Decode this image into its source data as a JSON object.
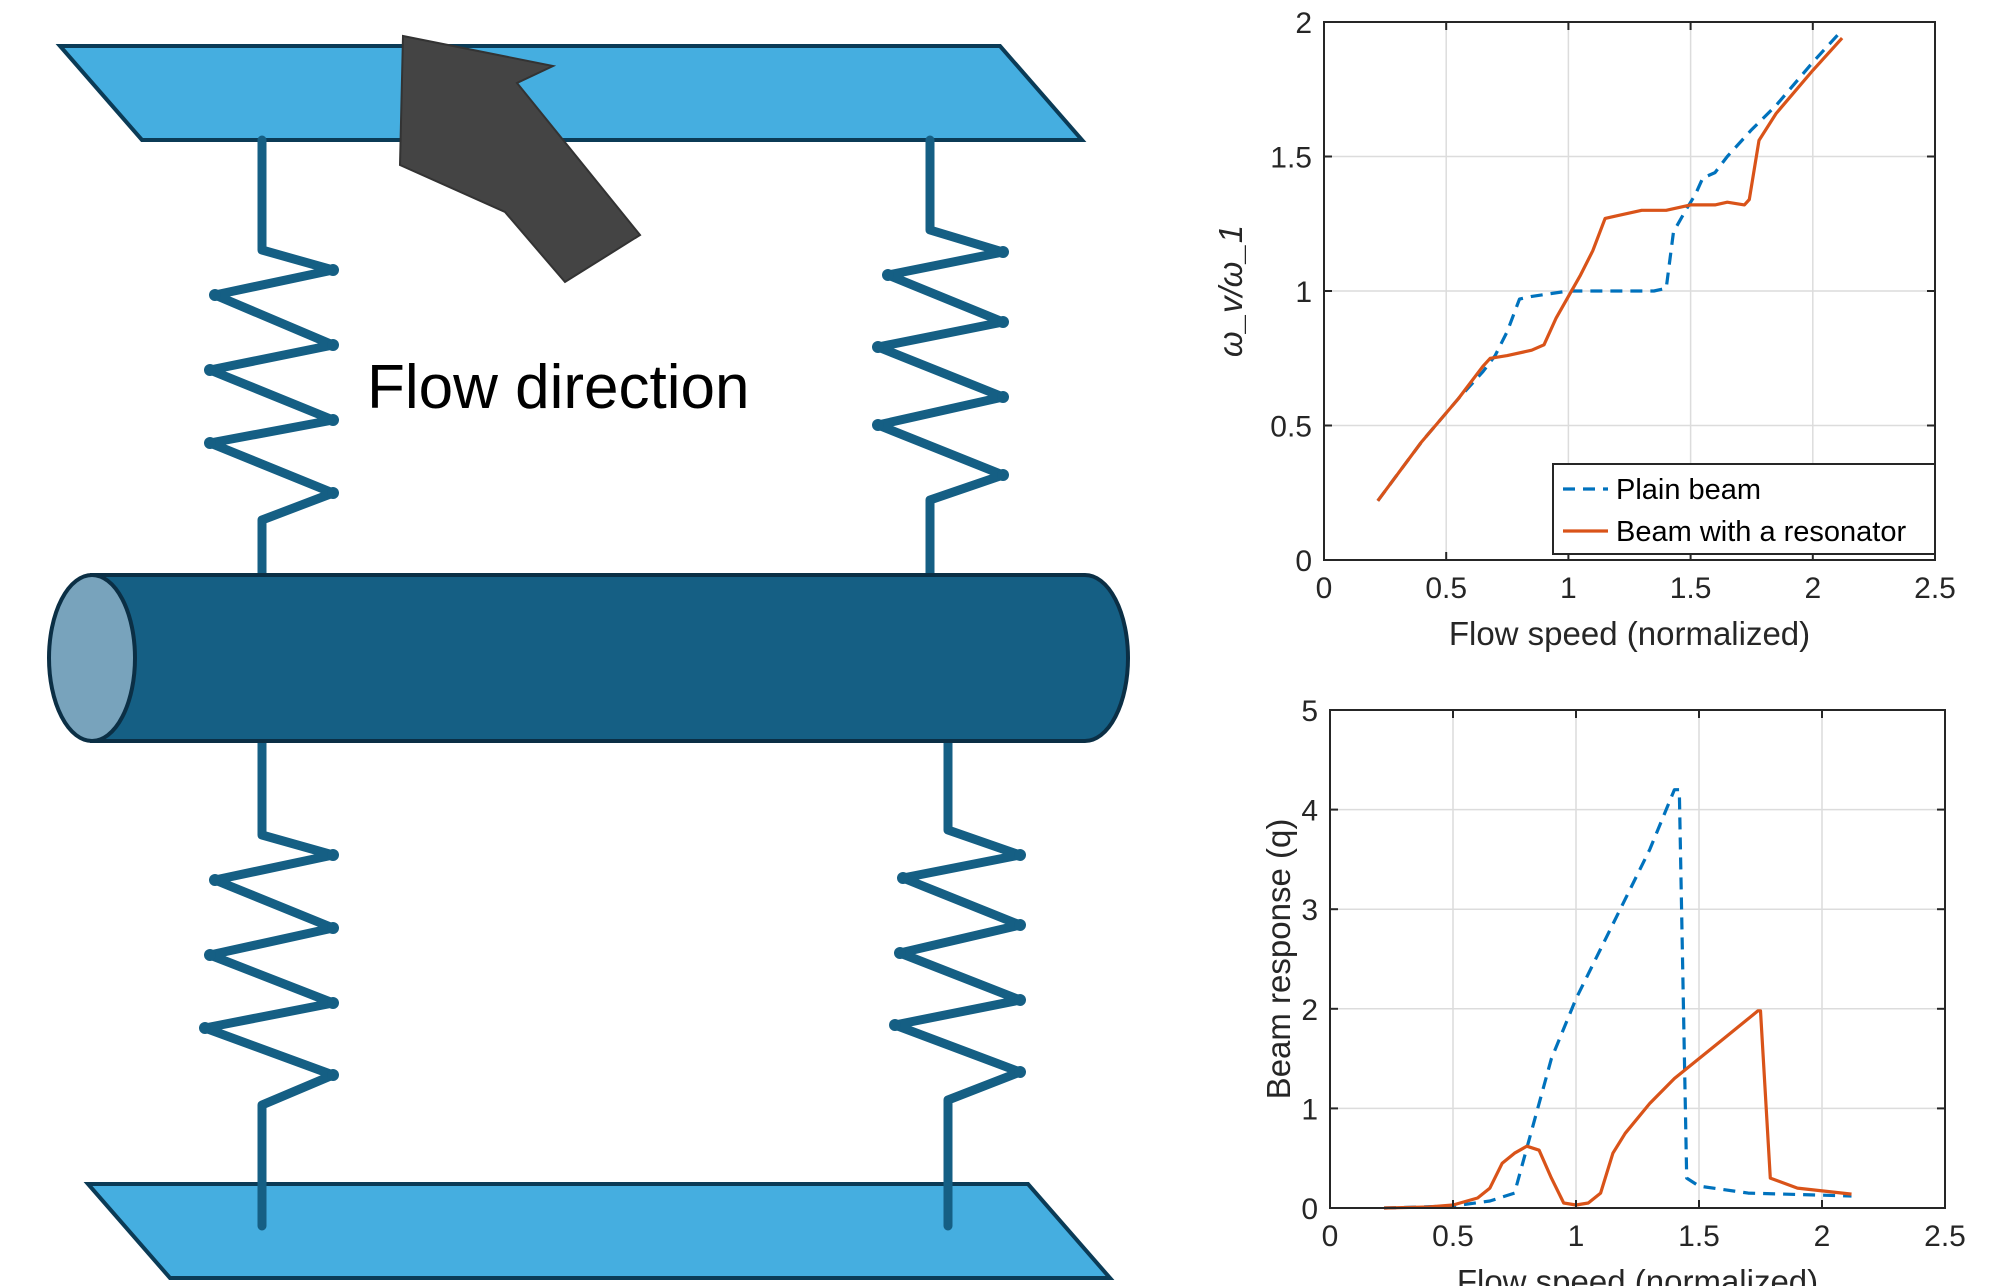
{
  "diagram": {
    "flow_label": "Flow direction",
    "colors": {
      "plate": "#45aee0",
      "plate_edge": "#0b3b56",
      "spring": "#155f84",
      "cylinder": "#155f84",
      "cylinder_cap": "#78a3bc",
      "arrow": "#444444"
    },
    "icons": [
      "top-plate",
      "bottom-plate",
      "cylinder",
      "spring",
      "flow-arrow"
    ]
  },
  "chart_data": [
    {
      "type": "line",
      "xlabel": "Flow speed (normalized)",
      "ylabel": "ω_v/ω_1",
      "xlim": [
        0,
        2.5
      ],
      "ylim": [
        0,
        2
      ],
      "xticks": [
        "0",
        "0.5",
        "1",
        "1.5",
        "2",
        "2.5"
      ],
      "yticks": [
        "0",
        "0.5",
        "1",
        "1.5",
        "2"
      ],
      "grid": true,
      "legend_placement": "bottom-right",
      "series": [
        {
          "name": "Plain beam",
          "style": "dashed",
          "color": "#0072bd",
          "x": [
            0.22,
            0.4,
            0.55,
            0.65,
            0.7,
            0.75,
            0.8,
            0.85,
            1.0,
            1.2,
            1.35,
            1.4,
            1.43,
            1.48,
            1.52,
            1.55,
            1.6,
            1.65,
            1.75,
            1.85,
            2.0,
            2.12
          ],
          "y": [
            0.22,
            0.44,
            0.6,
            0.7,
            0.76,
            0.85,
            0.97,
            0.98,
            1.0,
            1.0,
            1.0,
            1.01,
            1.22,
            1.3,
            1.36,
            1.42,
            1.44,
            1.5,
            1.6,
            1.69,
            1.85,
            1.97
          ]
        },
        {
          "name": "Beam with a resonator",
          "style": "solid",
          "color": "#d95319",
          "x": [
            0.22,
            0.4,
            0.55,
            0.65,
            0.68,
            0.75,
            0.85,
            0.9,
            0.95,
            1.0,
            1.05,
            1.1,
            1.15,
            1.2,
            1.3,
            1.4,
            1.5,
            1.6,
            1.65,
            1.72,
            1.74,
            1.78,
            1.85,
            2.0,
            2.12
          ],
          "y": [
            0.22,
            0.44,
            0.6,
            0.72,
            0.75,
            0.76,
            0.78,
            0.8,
            0.9,
            0.98,
            1.06,
            1.15,
            1.27,
            1.28,
            1.3,
            1.3,
            1.32,
            1.32,
            1.33,
            1.32,
            1.34,
            1.56,
            1.66,
            1.82,
            1.94
          ]
        }
      ]
    },
    {
      "type": "line",
      "xlabel": "Flow speed (normalized)",
      "ylabel": "Beam response (q)",
      "xlim": [
        0,
        2.5
      ],
      "ylim": [
        0,
        5
      ],
      "xticks": [
        "0",
        "0.5",
        "1",
        "1.5",
        "2",
        "2.5"
      ],
      "yticks": [
        "0",
        "1",
        "2",
        "3",
        "4",
        "5"
      ],
      "grid": true,
      "series": [
        {
          "name": "Plain beam",
          "style": "dashed",
          "color": "#0072bd",
          "x": [
            0.22,
            0.5,
            0.65,
            0.75,
            0.8,
            0.9,
            1.0,
            1.1,
            1.2,
            1.3,
            1.4,
            1.42,
            1.45,
            1.5,
            1.7,
            2.12
          ],
          "y": [
            0.0,
            0.02,
            0.07,
            0.15,
            0.6,
            1.5,
            2.1,
            2.6,
            3.1,
            3.6,
            4.2,
            4.2,
            0.3,
            0.22,
            0.15,
            0.12
          ]
        },
        {
          "name": "Beam with a resonator",
          "style": "solid",
          "color": "#d95319",
          "x": [
            0.22,
            0.4,
            0.5,
            0.6,
            0.65,
            0.7,
            0.75,
            0.8,
            0.85,
            0.9,
            0.95,
            1.0,
            1.05,
            1.1,
            1.15,
            1.2,
            1.3,
            1.4,
            1.5,
            1.6,
            1.7,
            1.74,
            1.75,
            1.79,
            1.9,
            2.12
          ],
          "y": [
            0.0,
            0.01,
            0.03,
            0.1,
            0.2,
            0.45,
            0.55,
            0.62,
            0.58,
            0.3,
            0.05,
            0.03,
            0.05,
            0.15,
            0.55,
            0.75,
            1.05,
            1.3,
            1.5,
            1.7,
            1.9,
            1.98,
            1.98,
            0.3,
            0.2,
            0.14
          ]
        }
      ]
    }
  ]
}
